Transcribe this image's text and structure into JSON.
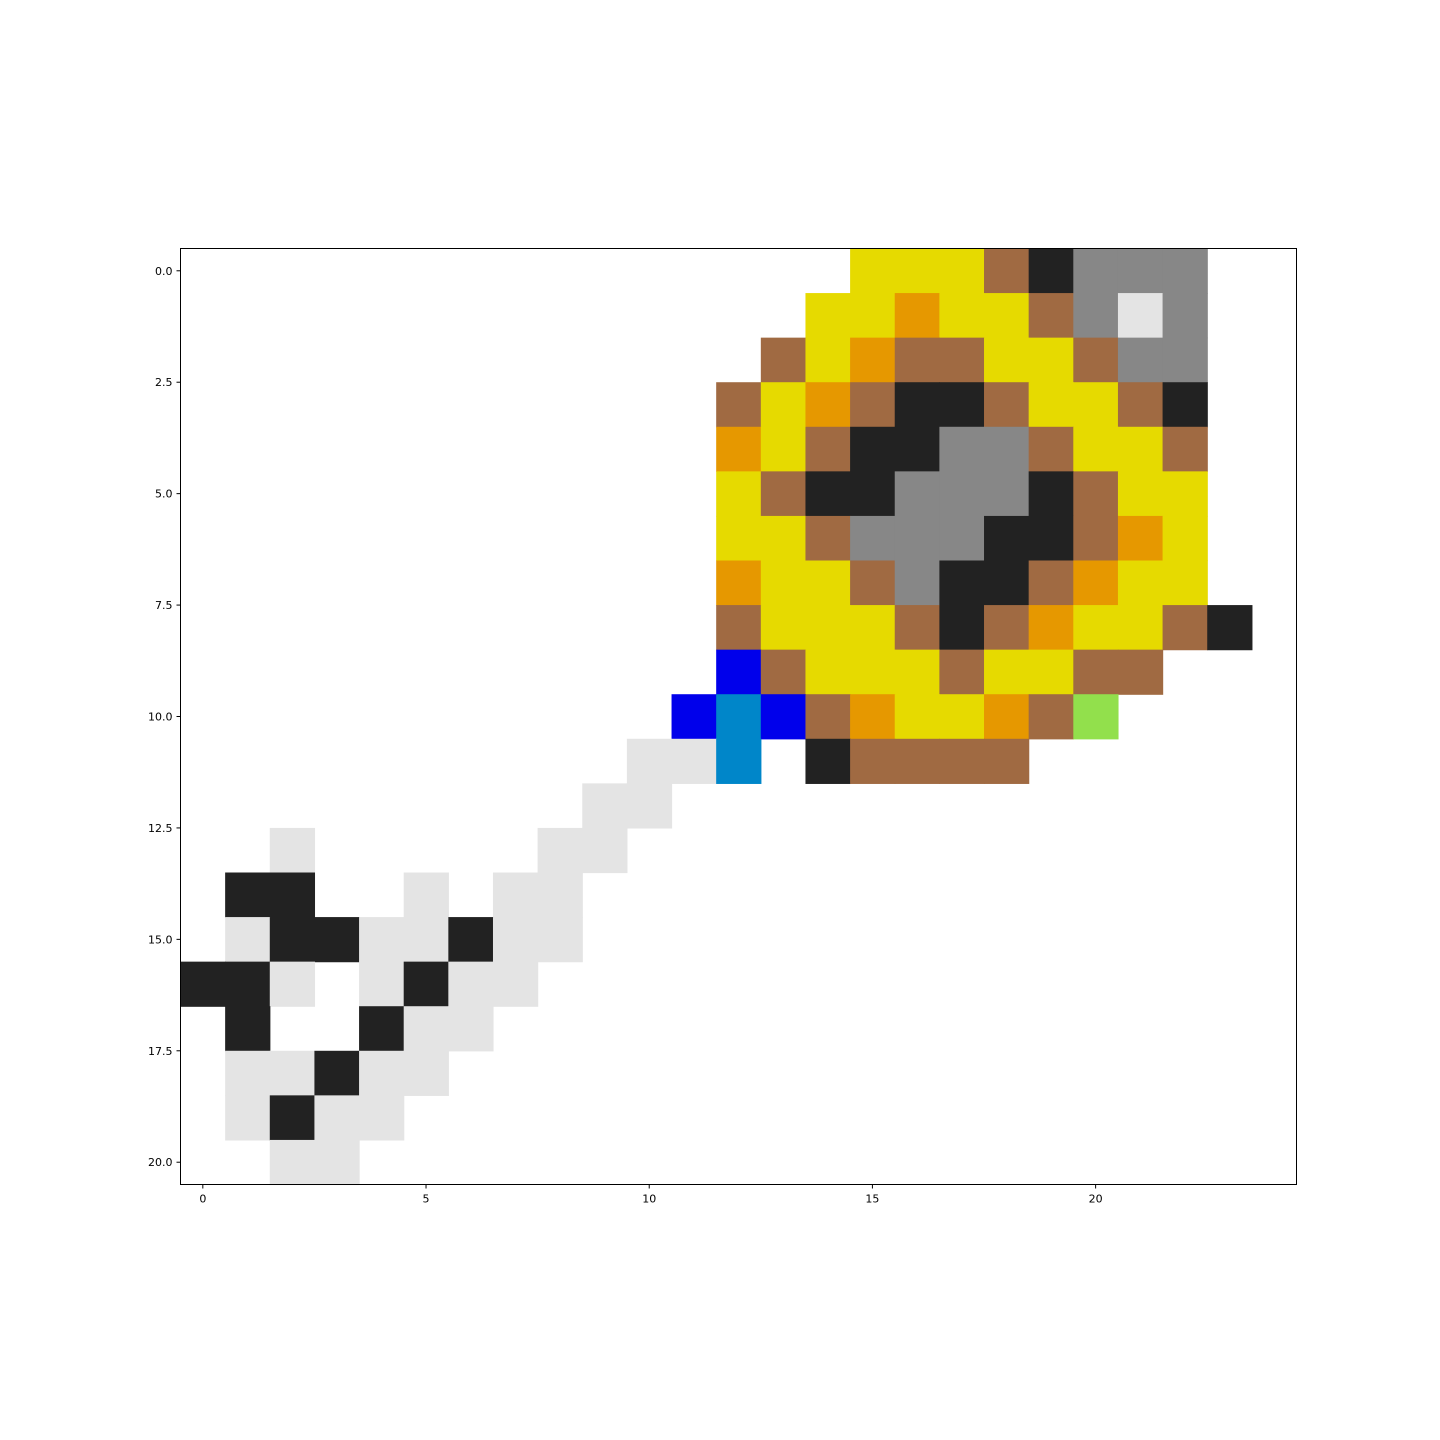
{
  "chart_data": {
    "type": "heatmap",
    "title": "",
    "xlabel": "",
    "ylabel": "",
    "xlim": [
      -0.5,
      24.5
    ],
    "ylim": [
      20.5,
      -0.5
    ],
    "x_ticks": [
      0,
      5,
      10,
      15,
      20
    ],
    "x_tick_labels": [
      "0",
      "5",
      "10",
      "15",
      "20"
    ],
    "y_ticks": [
      0,
      2.5,
      5,
      7.5,
      10,
      12.5,
      15,
      17.5,
      20
    ],
    "y_tick_labels": [
      "0.0",
      "2.5",
      "5.0",
      "7.5",
      "10.0",
      "12.5",
      "15.0",
      "17.5",
      "20.0"
    ],
    "grid": false,
    "legend": "none",
    "palette": {
      ".": "#ffffff",
      "Y": "#e6da00",
      "O": "#e69800",
      "B": "#a06a42",
      "K": "#222222",
      "G": "#878787",
      "L": "#e4e4e4",
      "U": "#0000eb",
      "C": "#0086c9",
      "N": "#92e04c"
    },
    "rows": [
      "...............YYYBKGGG..",
      "..............YYOYYBGLG..",
      ".............BYOBBYYBGG..",
      "............BYOBKKBYYBK..",
      "............OYBKKGGBYYB..",
      "............YBKKGGGKBYY..",
      "............YYBGGGKKBOY..",
      "............OYYBGKKBOYY..",
      "............BYYYBKBOYYBK.",
      "............UBYYYBYYBB...",
      "...........UCUBOYYOBN....",
      "..........LLC.KBBBB......",
      ".........LL..............",
      "..L.....LL...............",
      ".KK..L.LL................",
      ".LKKLLKLL................",
      "KKL.LKLL.................",
      ".K..KLL..................",
      ".LLKLL...................",
      ".LKLL....................",
      "..LL....................."
    ]
  }
}
